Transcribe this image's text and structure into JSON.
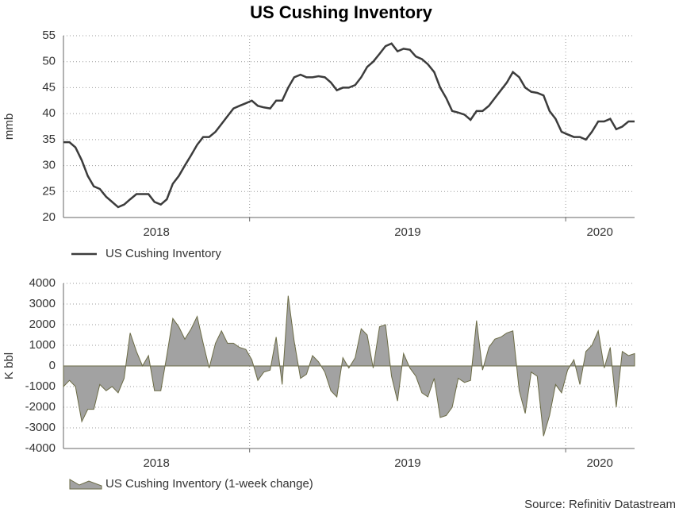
{
  "chart_data": [
    {
      "type": "line",
      "title": "US Cushing Inventory",
      "ylabel": "mmb",
      "step": true,
      "x": [
        2018.411,
        2018.43,
        2018.449,
        2018.469,
        2018.488,
        2018.507,
        2018.526,
        2018.546,
        2018.565,
        2018.584,
        2018.603,
        2018.622,
        2018.642,
        2018.661,
        2018.68,
        2018.699,
        2018.719,
        2018.738,
        2018.757,
        2018.776,
        2018.795,
        2018.815,
        2018.834,
        2018.853,
        2018.872,
        2018.892,
        2018.911,
        2018.93,
        2018.949,
        2018.968,
        2018.988,
        2019.007,
        2019.026,
        2019.045,
        2019.065,
        2019.084,
        2019.103,
        2019.122,
        2019.141,
        2019.161,
        2019.18,
        2019.199,
        2019.218,
        2019.238,
        2019.257,
        2019.276,
        2019.295,
        2019.314,
        2019.334,
        2019.353,
        2019.372,
        2019.391,
        2019.411,
        2019.43,
        2019.449,
        2019.468,
        2019.487,
        2019.507,
        2019.526,
        2019.545,
        2019.564,
        2019.584,
        2019.603,
        2019.622,
        2019.641,
        2019.66,
        2019.68,
        2019.699,
        2019.718,
        2019.737,
        2019.757,
        2019.776,
        2019.795,
        2019.814,
        2019.833,
        2019.853,
        2019.872,
        2019.891,
        2019.91,
        2019.93,
        2019.949,
        2019.968,
        2019.987,
        2020.006,
        2020.026,
        2020.045,
        2020.064,
        2020.083,
        2020.103,
        2020.122,
        2020.141,
        2020.16,
        2020.179,
        2020.199,
        2020.218
      ],
      "series": [
        {
          "name": "US Cushing Inventory",
          "color": "#3c3c3c",
          "values": [
            34.5,
            34.5,
            33.5,
            31,
            28,
            26,
            25.5,
            24,
            23,
            22,
            22.5,
            23.5,
            24.5,
            24.5,
            24.5,
            23,
            22.5,
            23.5,
            26.5,
            28,
            30,
            32,
            34,
            35.5,
            35.5,
            36.5,
            38,
            39.5,
            41,
            41.5,
            42,
            42.5,
            41.5,
            41.2,
            41,
            42.5,
            42.5,
            45,
            47,
            47.5,
            47,
            47,
            47.2,
            47,
            46,
            44.5,
            45,
            45,
            45.5,
            47,
            49,
            50,
            51.5,
            53,
            53.5,
            52,
            52.5,
            52.3,
            51,
            50.5,
            49.5,
            48,
            45,
            43,
            40.5,
            40.2,
            39.8,
            38.8,
            40.5,
            40.5,
            41.5,
            43,
            44.5,
            46,
            48,
            47,
            45,
            44.2,
            44,
            43.5,
            40.5,
            39,
            36.5,
            36,
            35.5,
            35.5,
            35,
            36.5,
            38.5,
            38.5,
            39,
            37,
            37.5,
            38.5,
            38.5
          ]
        }
      ],
      "xlim": [
        2018.411,
        2020.218
      ],
      "xticks": [
        {
          "value": 2018.705,
          "label": "2018"
        },
        {
          "value": 2019.5,
          "label": "2019"
        },
        {
          "value": 2020.108,
          "label": "2020"
        }
      ],
      "xgrid": [
        2019,
        2020
      ],
      "ylim": [
        20,
        55
      ],
      "yticks": [
        20,
        25,
        30,
        35,
        40,
        45,
        50,
        55
      ],
      "grid": true
    },
    {
      "type": "area",
      "ylabel": "K bbl",
      "source": "Source: Refinitiv Datastream",
      "x": [
        2018.411,
        2018.43,
        2018.449,
        2018.469,
        2018.488,
        2018.507,
        2018.526,
        2018.546,
        2018.565,
        2018.584,
        2018.603,
        2018.622,
        2018.642,
        2018.661,
        2018.68,
        2018.699,
        2018.719,
        2018.738,
        2018.757,
        2018.776,
        2018.795,
        2018.815,
        2018.834,
        2018.853,
        2018.872,
        2018.892,
        2018.911,
        2018.93,
        2018.949,
        2018.968,
        2018.988,
        2019.007,
        2019.026,
        2019.045,
        2019.065,
        2019.084,
        2019.103,
        2019.122,
        2019.141,
        2019.161,
        2019.18,
        2019.199,
        2019.218,
        2019.238,
        2019.257,
        2019.276,
        2019.295,
        2019.314,
        2019.334,
        2019.353,
        2019.372,
        2019.391,
        2019.411,
        2019.43,
        2019.449,
        2019.468,
        2019.487,
        2019.507,
        2019.526,
        2019.545,
        2019.564,
        2019.584,
        2019.603,
        2019.622,
        2019.641,
        2019.66,
        2019.68,
        2019.699,
        2019.718,
        2019.737,
        2019.757,
        2019.776,
        2019.795,
        2019.814,
        2019.833,
        2019.853,
        2019.872,
        2019.891,
        2019.91,
        2019.93,
        2019.949,
        2019.968,
        2019.987,
        2020.006,
        2020.026,
        2020.045,
        2020.064,
        2020.083,
        2020.103,
        2020.122,
        2020.141,
        2020.16,
        2020.179,
        2020.199,
        2020.218
      ],
      "series": [
        {
          "name": "US Cushing Inventory (1-week change)",
          "color": "#a2a2a2",
          "values": [
            -1000,
            -700,
            -1000,
            -2700,
            -2100,
            -2100,
            -900,
            -1200,
            -1000,
            -1300,
            -600,
            1600,
            700,
            0,
            500,
            -1200,
            -1200,
            500,
            2300,
            1900,
            1300,
            1800,
            2400,
            1100,
            -100,
            1100,
            1700,
            1100,
            1100,
            900,
            800,
            300,
            -700,
            -300,
            -200,
            1400,
            -900,
            3400,
            1200,
            -600,
            -400,
            500,
            200,
            -300,
            -1200,
            -1500,
            400,
            -100,
            400,
            1800,
            1500,
            -100,
            1900,
            2000,
            -500,
            -1700,
            600,
            -100,
            -500,
            -1300,
            -1500,
            -600,
            -2500,
            -2400,
            -2000,
            -600,
            -800,
            -700,
            2200,
            -200,
            900,
            1300,
            1400,
            1600,
            1700,
            -1200,
            -2300,
            -300,
            -500,
            -3400,
            -2400,
            -900,
            -1300,
            -200,
            300,
            -900,
            700,
            1000,
            1700,
            -100,
            900,
            -2000,
            700,
            500,
            600
          ]
        }
      ],
      "xlim": [
        2018.411,
        2020.218
      ],
      "xticks": [
        {
          "value": 2018.705,
          "label": "2018"
        },
        {
          "value": 2019.5,
          "label": "2019"
        },
        {
          "value": 2020.108,
          "label": "2020"
        }
      ],
      "xgrid": [
        2019,
        2020
      ],
      "ylim": [
        -4000,
        4000
      ],
      "yticks": [
        -4000,
        -3000,
        -2000,
        -1000,
        0,
        1000,
        2000,
        3000,
        4000
      ],
      "grid": true
    }
  ]
}
